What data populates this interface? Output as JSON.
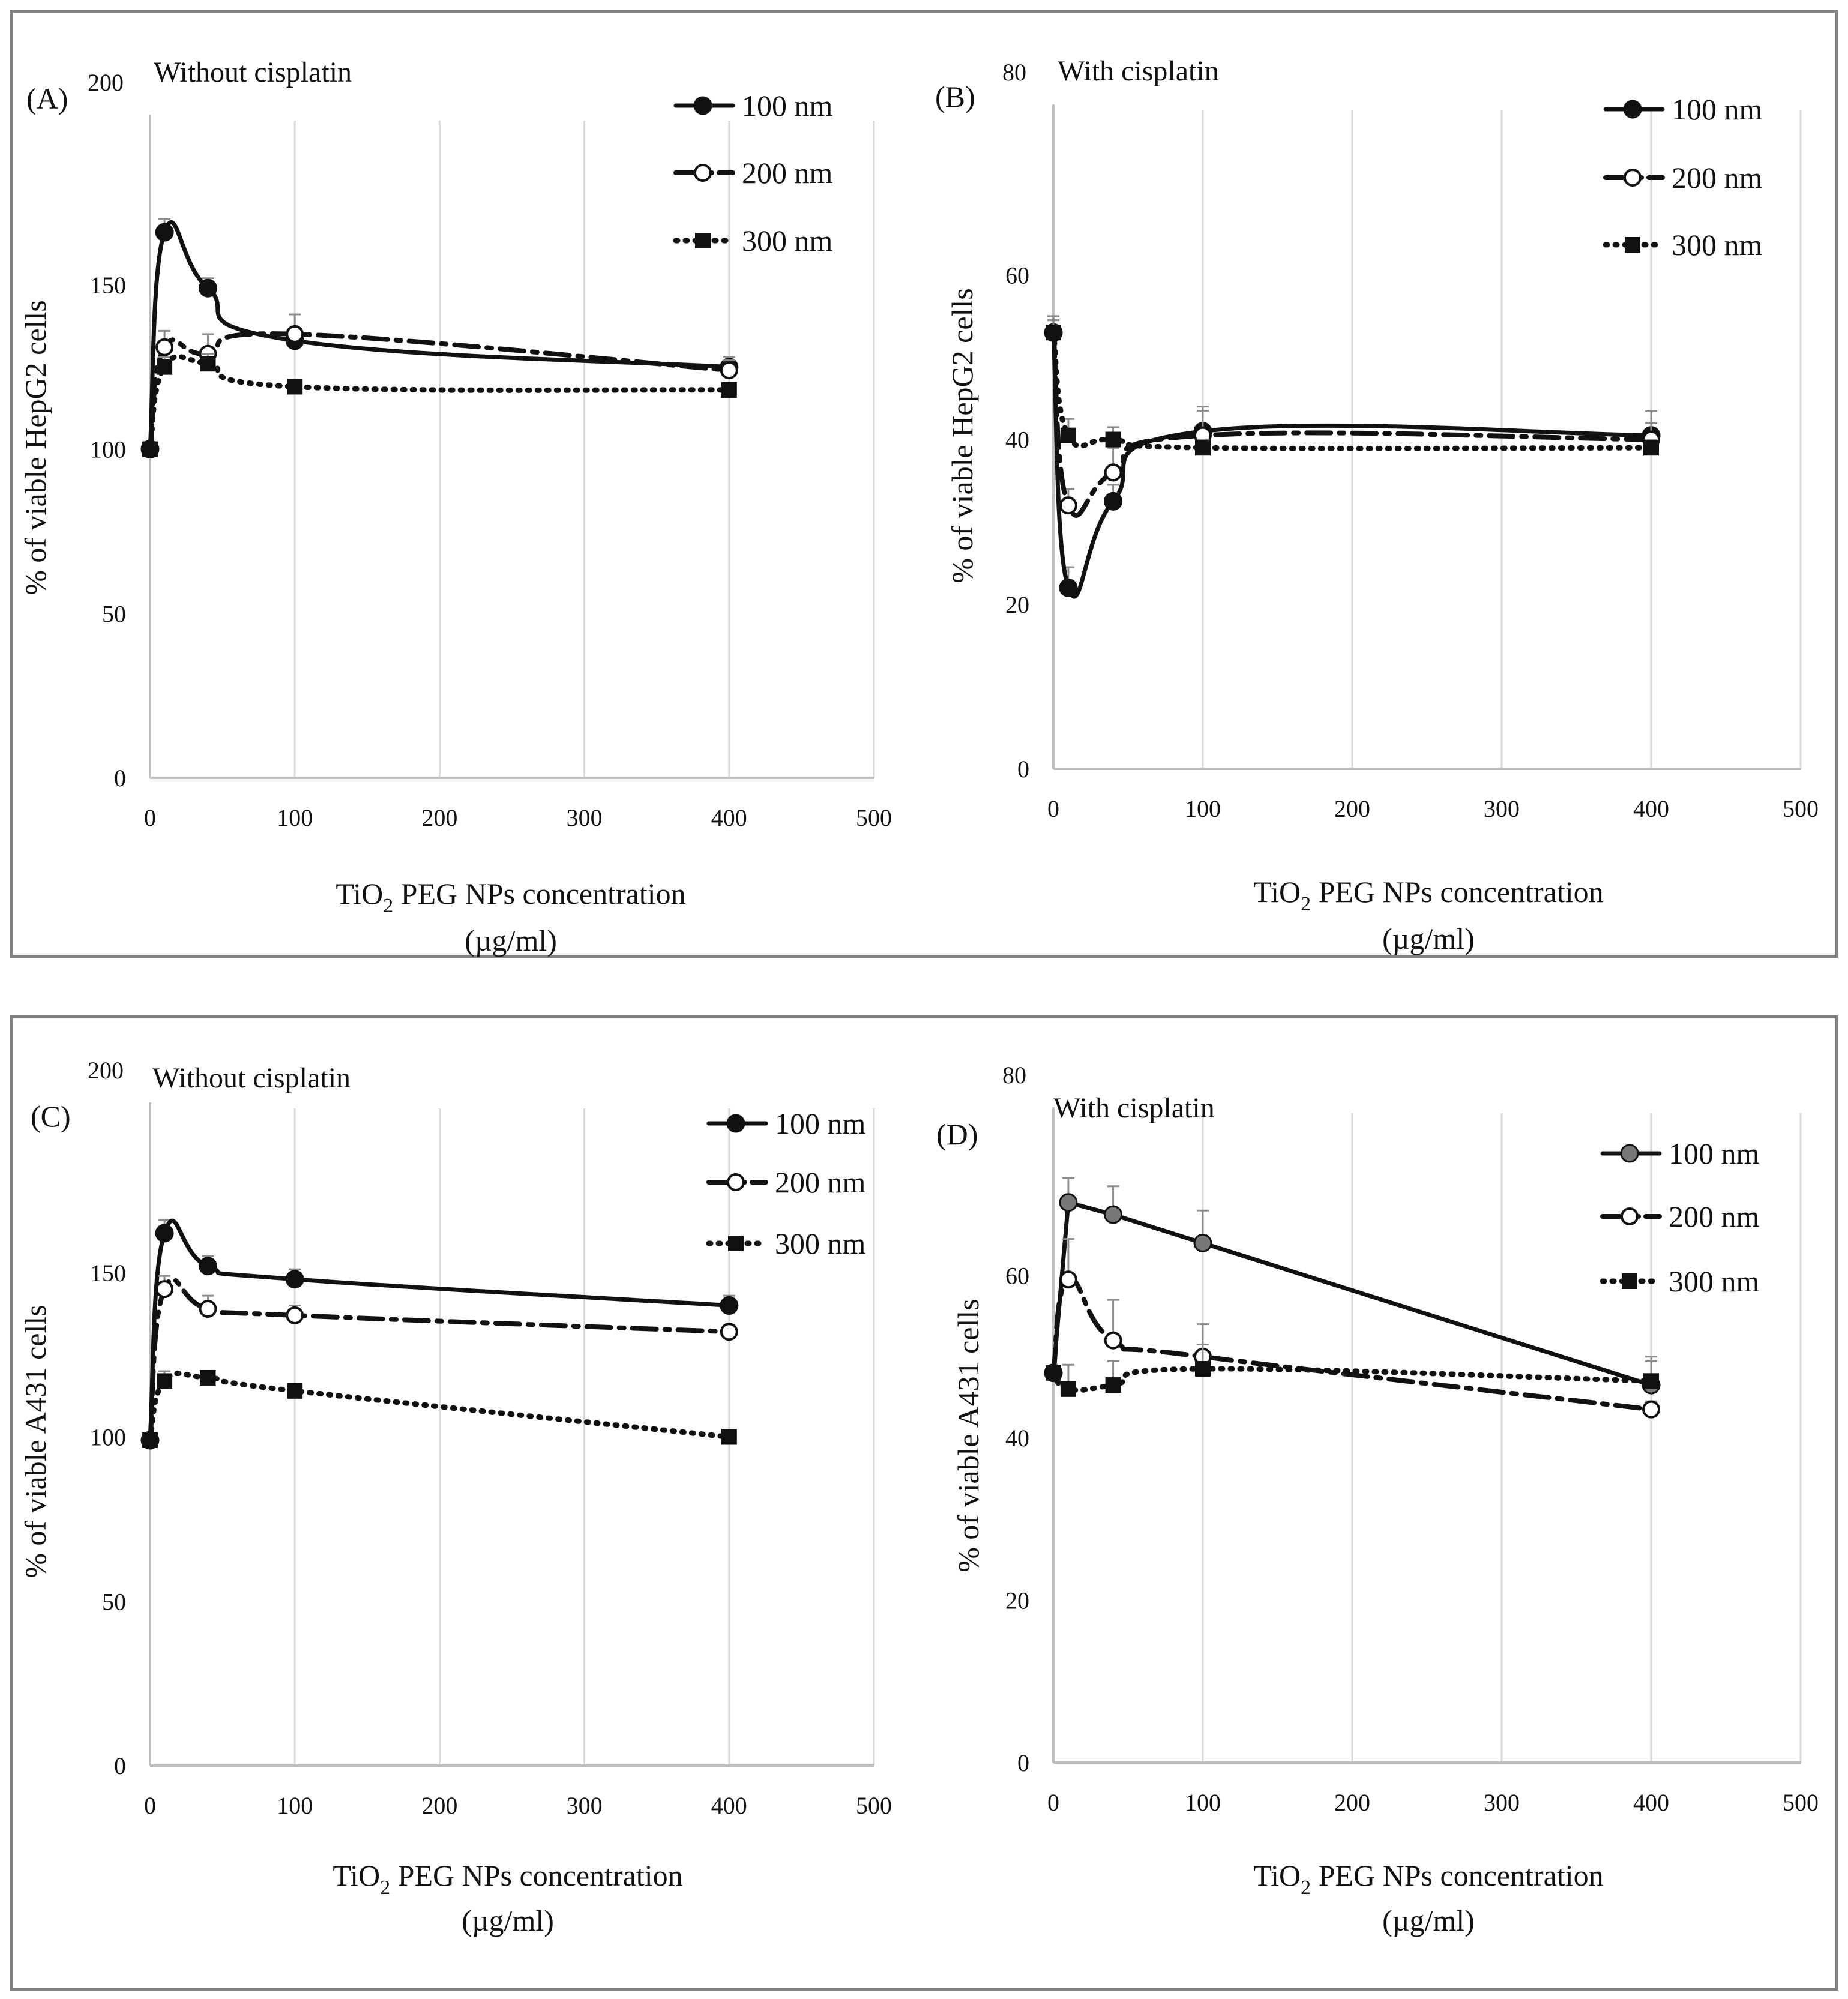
{
  "chart_data": [
    {
      "type": "line",
      "panel_label": "(A)",
      "title": "Without cisplatin",
      "ylabel": "% of  viable  HepG2  cells",
      "xlabel_line1_pre": "TiO",
      "xlabel_line1_sub": "2",
      "xlabel_line1_post": " PEG NPs concentration",
      "xlabel_line2": "(µg/ml)",
      "xlim": [
        0,
        500
      ],
      "ylim": [
        0,
        200
      ],
      "xticks": [
        "0",
        "100",
        "200",
        "300",
        "400",
        "500"
      ],
      "yticks": [
        "0",
        "50",
        "100",
        "150",
        "200"
      ],
      "x": [
        0,
        10,
        40,
        100,
        400
      ],
      "series": [
        {
          "name": "100 nm",
          "values": [
            100,
            166,
            149,
            133,
            125
          ],
          "errors": [
            0,
            4,
            3,
            3,
            3
          ]
        },
        {
          "name": "200 nm",
          "values": [
            100,
            131,
            129,
            135,
            124
          ],
          "errors": [
            0,
            5,
            6,
            6,
            3
          ]
        },
        {
          "name": "300 nm",
          "values": [
            100,
            125,
            126,
            119,
            118
          ],
          "errors": [
            0,
            3,
            3,
            2,
            2
          ]
        }
      ]
    },
    {
      "type": "line",
      "panel_label": "(B)",
      "title": "With cisplatin",
      "ylabel": "% of  viable  HepG2  cells",
      "xlabel_line1_pre": "TiO",
      "xlabel_line1_sub": "2",
      "xlabel_line1_post": " PEG NPs concentration",
      "xlabel_line2": "(µg/ml)",
      "xlim": [
        0,
        500
      ],
      "ylim": [
        0,
        80
      ],
      "xticks": [
        "0",
        "100",
        "200",
        "300",
        "400",
        "500"
      ],
      "yticks": [
        "0",
        "20",
        "40",
        "60",
        "80"
      ],
      "x": [
        0,
        10,
        40,
        100,
        400
      ],
      "series": [
        {
          "name": "100 nm",
          "values": [
            53,
            22,
            32.5,
            41,
            40.5
          ],
          "errors": [
            1.5,
            2.5,
            2,
            3,
            3
          ]
        },
        {
          "name": "200 nm",
          "values": [
            53,
            32,
            36,
            40.5,
            40
          ],
          "errors": [
            1.5,
            2,
            3,
            3,
            2
          ]
        },
        {
          "name": "300 nm",
          "values": [
            53,
            40.5,
            40,
            39,
            39
          ],
          "errors": [
            2,
            2,
            1.5,
            1,
            1
          ]
        }
      ]
    },
    {
      "type": "line",
      "panel_label": "(C)",
      "title": "Without cisplatin",
      "ylabel": "% of  viable  A431 cells",
      "xlabel_line1_pre": "TiO",
      "xlabel_line1_sub": "2",
      "xlabel_line1_post": " PEG NPs concentration",
      "xlabel_line2": "(µg/ml)",
      "xlim": [
        0,
        500
      ],
      "ylim": [
        0,
        200
      ],
      "xticks": [
        "0",
        "100",
        "200",
        "300",
        "400",
        "500"
      ],
      "yticks": [
        "0",
        "50",
        "100",
        "150",
        "200"
      ],
      "x": [
        0,
        10,
        40,
        100,
        400
      ],
      "series": [
        {
          "name": "100 nm",
          "values": [
            99,
            162,
            152,
            148,
            140
          ],
          "errors": [
            0,
            4,
            3,
            3,
            3
          ]
        },
        {
          "name": "200 nm",
          "values": [
            99,
            145,
            139,
            137,
            132
          ],
          "errors": [
            0,
            4,
            4,
            3,
            2
          ]
        },
        {
          "name": "300 nm",
          "values": [
            99,
            117,
            118,
            114,
            100
          ],
          "errors": [
            0,
            3,
            2,
            2,
            1
          ]
        }
      ]
    },
    {
      "type": "line",
      "panel_label": "(D)",
      "title": "With cisplatin",
      "ylabel": "% of viable  A431 cells",
      "xlabel_line1_pre": "TiO",
      "xlabel_line1_sub": "2",
      "xlabel_line1_post": " PEG NPs concentration",
      "xlabel_line2": "(µg/ml)",
      "xlim": [
        0,
        500
      ],
      "ylim": [
        0,
        80
      ],
      "xticks": [
        "0",
        "100",
        "200",
        "300",
        "400",
        "500"
      ],
      "yticks": [
        "0",
        "20",
        "40",
        "60",
        "80"
      ],
      "x": [
        0,
        10,
        40,
        100,
        400
      ],
      "series": [
        {
          "name": "100 nm",
          "values": [
            48,
            69,
            67.5,
            64,
            46.5
          ],
          "errors": [
            0,
            3,
            3.5,
            4,
            3
          ]
        },
        {
          "name": "200 nm",
          "values": [
            48,
            59.5,
            52,
            50,
            43.5
          ],
          "errors": [
            0,
            5,
            5,
            4,
            1
          ]
        },
        {
          "name": "300 nm",
          "values": [
            48,
            46,
            46.5,
            48.5,
            47
          ],
          "errors": [
            0,
            3,
            3,
            3,
            3
          ]
        }
      ]
    }
  ]
}
